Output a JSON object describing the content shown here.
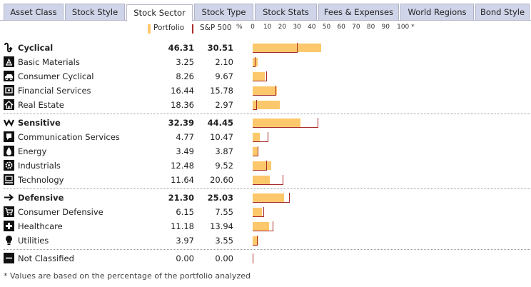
{
  "tabs": [
    {
      "label": "Asset Class",
      "active": false
    },
    {
      "label": "Stock Style",
      "active": false
    },
    {
      "label": "Stock Sector",
      "active": true
    },
    {
      "label": "Stock Type",
      "active": false
    },
    {
      "label": "Stock Stats",
      "active": false
    },
    {
      "label": "Fees & Expenses",
      "active": false
    },
    {
      "label": "World Regions",
      "active": false
    },
    {
      "label": "Bond Style",
      "active": false
    }
  ],
  "legend": {
    "portfolio_label": "Portfolio",
    "benchmark_label": "S&P 500"
  },
  "scale": {
    "unit": "%",
    "ticks": [
      "0",
      "10",
      "20",
      "30",
      "40",
      "50",
      "60",
      "70",
      "80",
      "90",
      "100 *"
    ]
  },
  "colors": {
    "portfolio": "#fdc86b",
    "benchmark": "#a92b2b",
    "tab_bg": "#cfd4e8"
  },
  "chart_data": {
    "type": "bar",
    "xlim": [
      0,
      100
    ],
    "series": [
      {
        "name": "Portfolio"
      },
      {
        "name": "S&P 500"
      }
    ],
    "rows": [
      {
        "label": "Cyclical",
        "icon": "cyclical-icon",
        "bold": true,
        "portfolio": "46.31",
        "benchmark": "30.51"
      },
      {
        "label": "Basic Materials",
        "icon": "basic-materials-icon",
        "bold": false,
        "portfolio": "3.25",
        "benchmark": "2.10"
      },
      {
        "label": "Consumer Cyclical",
        "icon": "consumer-cyclical-icon",
        "bold": false,
        "portfolio": "8.26",
        "benchmark": "9.67"
      },
      {
        "label": "Financial Services",
        "icon": "financial-services-icon",
        "bold": false,
        "portfolio": "16.44",
        "benchmark": "15.78"
      },
      {
        "label": "Real Estate",
        "icon": "real-estate-icon",
        "bold": false,
        "portfolio": "18.36",
        "benchmark": "2.97"
      },
      {
        "label": "Sensitive",
        "icon": "sensitive-icon",
        "bold": true,
        "portfolio": "32.39",
        "benchmark": "44.45"
      },
      {
        "label": "Communication Services",
        "icon": "communication-services-icon",
        "bold": false,
        "portfolio": "4.77",
        "benchmark": "10.47"
      },
      {
        "label": "Energy",
        "icon": "energy-icon",
        "bold": false,
        "portfolio": "3.49",
        "benchmark": "3.87"
      },
      {
        "label": "Industrials",
        "icon": "industrials-icon",
        "bold": false,
        "portfolio": "12.48",
        "benchmark": "9.52"
      },
      {
        "label": "Technology",
        "icon": "technology-icon",
        "bold": false,
        "portfolio": "11.64",
        "benchmark": "20.60"
      },
      {
        "label": "Defensive",
        "icon": "defensive-icon",
        "bold": true,
        "portfolio": "21.30",
        "benchmark": "25.03"
      },
      {
        "label": "Consumer Defensive",
        "icon": "consumer-defensive-icon",
        "bold": false,
        "portfolio": "6.15",
        "benchmark": "7.55"
      },
      {
        "label": "Healthcare",
        "icon": "healthcare-icon",
        "bold": false,
        "portfolio": "11.18",
        "benchmark": "13.94"
      },
      {
        "label": "Utilities",
        "icon": "utilities-icon",
        "bold": false,
        "portfolio": "3.97",
        "benchmark": "3.55"
      },
      {
        "label": "Not Classified",
        "icon": "not-classified-icon",
        "bold": false,
        "portfolio": "0.00",
        "benchmark": "0.00"
      }
    ]
  },
  "footnote": "* Values are based on the percentage of the portfolio analyzed"
}
